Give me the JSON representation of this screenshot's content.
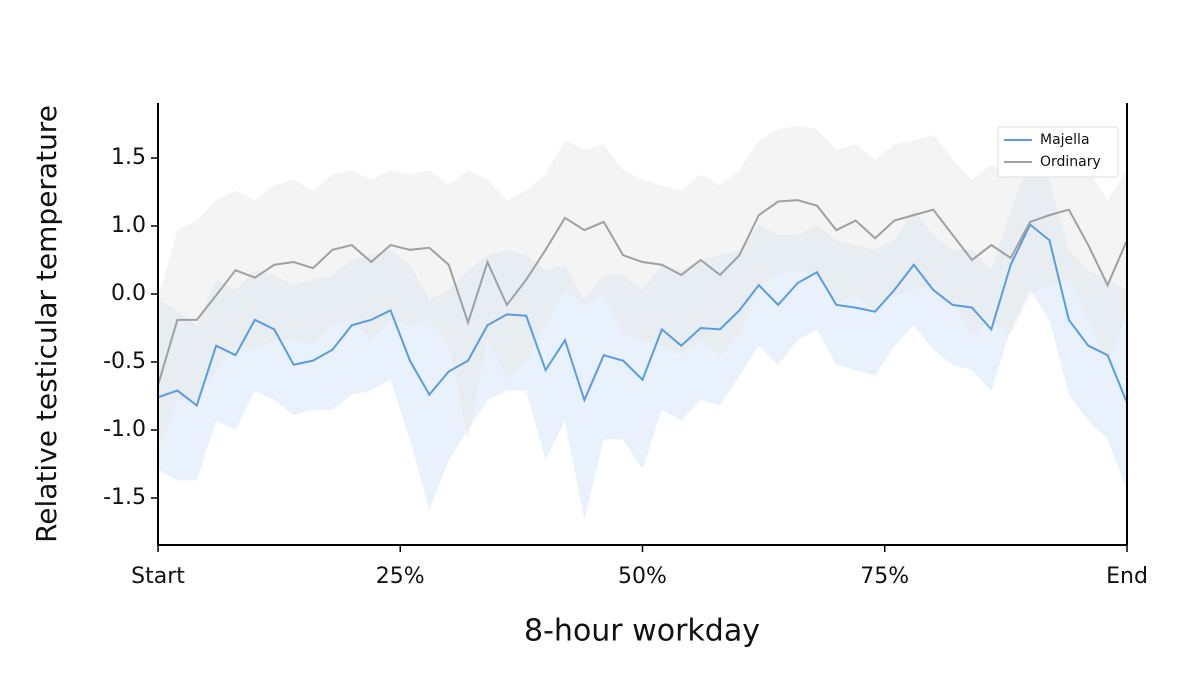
{
  "chart_data": {
    "type": "line",
    "xlabel": "8-hour workday",
    "ylabel": "Relative testicular temperature",
    "x": [
      0,
      2,
      4,
      6,
      8,
      10,
      12,
      14,
      16,
      18,
      20,
      22,
      24,
      26,
      28,
      30,
      32,
      34,
      36,
      38,
      40,
      42,
      44,
      46,
      48,
      50,
      52,
      54,
      56,
      58,
      60,
      62,
      64,
      66,
      68,
      70,
      72,
      74,
      76,
      78,
      80,
      82,
      84,
      86,
      88,
      90,
      92,
      94,
      96,
      98,
      100
    ],
    "xlim": [
      0,
      100
    ],
    "xticks": [
      {
        "value": 0,
        "label": "Start"
      },
      {
        "value": 25,
        "label": "25%"
      },
      {
        "value": 50,
        "label": "50%"
      },
      {
        "value": 75,
        "label": "75%"
      },
      {
        "value": 100,
        "label": "End"
      }
    ],
    "ylim": [
      -1.85,
      1.9
    ],
    "yticks": [
      {
        "value": 1.5,
        "label": "1.5"
      },
      {
        "value": 1.0,
        "label": "1.0"
      },
      {
        "value": 0.0,
        "label": "0.0"
      },
      {
        "value": -0.5,
        "label": "-0.5"
      },
      {
        "value": -1.0,
        "label": "-1.0"
      },
      {
        "value": -1.5,
        "label": "-1.5"
      }
    ],
    "legend": "upper right",
    "series": [
      {
        "name": "Majella",
        "color": "#5b9bdf",
        "band_color": "#cfe2f8",
        "values": [
          -0.76,
          -0.71,
          -0.82,
          -0.38,
          -0.45,
          -0.19,
          -0.26,
          -0.52,
          -0.49,
          -0.41,
          -0.23,
          -0.19,
          -0.12,
          -0.49,
          -0.74,
          -0.57,
          -0.49,
          -0.23,
          -0.15,
          -0.16,
          -0.56,
          -0.34,
          -0.78,
          -0.45,
          -0.49,
          -0.63,
          -0.26,
          -0.38,
          -0.25,
          -0.26,
          -0.12,
          0.13,
          -0.08,
          0.16,
          0.32,
          -0.08,
          -0.1,
          -0.13,
          0.06,
          0.43,
          0.06,
          -0.08,
          -0.1,
          -0.26,
          0.43,
          1.01,
          0.79,
          -0.19,
          -0.38,
          -0.45,
          -0.8
        ],
        "upper": [
          -0.04,
          -0.12,
          -0.23,
          0.21,
          0.06,
          0.35,
          0.28,
          0.13,
          0.21,
          0.28,
          0.5,
          0.57,
          0.65,
          0.43,
          -0.04,
          0.06,
          0.35,
          0.57,
          0.65,
          0.57,
          0.35,
          0.43,
          -0.04,
          0.28,
          0.28,
          0.06,
          0.43,
          0.35,
          0.5,
          0.57,
          0.65,
          1.01,
          0.87,
          0.87,
          1.01,
          0.79,
          0.72,
          0.65,
          0.79,
          1.12,
          0.87,
          0.65,
          0.65,
          0.35,
          1.12,
          1.49,
          1.34,
          0.65,
          0.35,
          0.21,
          0.06
        ],
        "lower": [
          -1.29,
          -1.37,
          -1.37,
          -0.93,
          -1.0,
          -0.71,
          -0.78,
          -0.89,
          -0.85,
          -0.85,
          -0.74,
          -0.71,
          -0.63,
          -1.07,
          -1.59,
          -1.22,
          -1.0,
          -0.78,
          -0.71,
          -0.71,
          -1.22,
          -0.93,
          -1.66,
          -1.07,
          -1.07,
          -1.29,
          -0.85,
          -0.93,
          -0.78,
          -0.82,
          -0.6,
          -0.38,
          -0.52,
          -0.34,
          -0.26,
          -0.52,
          -0.56,
          -0.6,
          -0.38,
          -0.23,
          -0.41,
          -0.52,
          -0.56,
          -0.71,
          -0.26,
          0.06,
          -0.19,
          -0.74,
          -0.93,
          -1.07,
          -1.44
        ]
      },
      {
        "name": "Ordinary",
        "color": "#a0a0a0",
        "band_color": "#e6e6e6",
        "values": [
          -0.67,
          -0.19,
          -0.19,
          -0.01,
          0.35,
          0.24,
          0.43,
          0.47,
          0.38,
          0.65,
          0.72,
          0.47,
          0.72,
          0.65,
          0.68,
          0.43,
          -0.21,
          0.47,
          -0.08,
          0.21,
          0.65,
          1.06,
          0.94,
          1.03,
          0.57,
          0.47,
          0.43,
          0.28,
          0.5,
          0.28,
          0.57,
          1.08,
          1.18,
          1.19,
          1.15,
          0.94,
          1.04,
          0.82,
          1.04,
          1.08,
          1.12,
          0.87,
          0.5,
          0.72,
          0.53,
          1.03,
          1.08,
          1.12,
          0.72,
          0.13,
          0.79
        ],
        "upper": [
          -0.04,
          0.94,
          1.04,
          1.19,
          1.26,
          1.19,
          1.3,
          1.34,
          1.26,
          1.38,
          1.41,
          1.34,
          1.41,
          1.38,
          1.41,
          1.3,
          1.41,
          1.34,
          1.19,
          1.26,
          1.38,
          1.63,
          1.56,
          1.6,
          1.41,
          1.34,
          1.3,
          1.26,
          1.38,
          1.3,
          1.41,
          1.63,
          1.71,
          1.74,
          1.71,
          1.56,
          1.6,
          1.49,
          1.6,
          1.63,
          1.67,
          1.49,
          1.34,
          1.45,
          1.38,
          1.56,
          1.6,
          1.56,
          1.41,
          1.19,
          1.41
        ],
        "lower": [
          -1.15,
          -0.78,
          -0.78,
          -0.56,
          -0.38,
          -0.41,
          -0.34,
          -0.34,
          -0.38,
          -0.23,
          -0.19,
          -0.34,
          -0.19,
          -0.23,
          -0.19,
          -0.38,
          -1.07,
          -0.34,
          -0.63,
          -0.49,
          -0.23,
          0.06,
          -0.08,
          -0.01,
          -0.3,
          -0.34,
          -0.38,
          -0.45,
          -0.34,
          -0.45,
          -0.3,
          0.13,
          0.28,
          0.35,
          0.28,
          -0.08,
          -0.01,
          -0.12,
          -0.01,
          0.06,
          0.13,
          -0.08,
          -0.3,
          -0.19,
          -0.3,
          -0.01,
          0.13,
          0.21,
          -0.19,
          -0.52,
          -0.15
        ]
      }
    ]
  }
}
